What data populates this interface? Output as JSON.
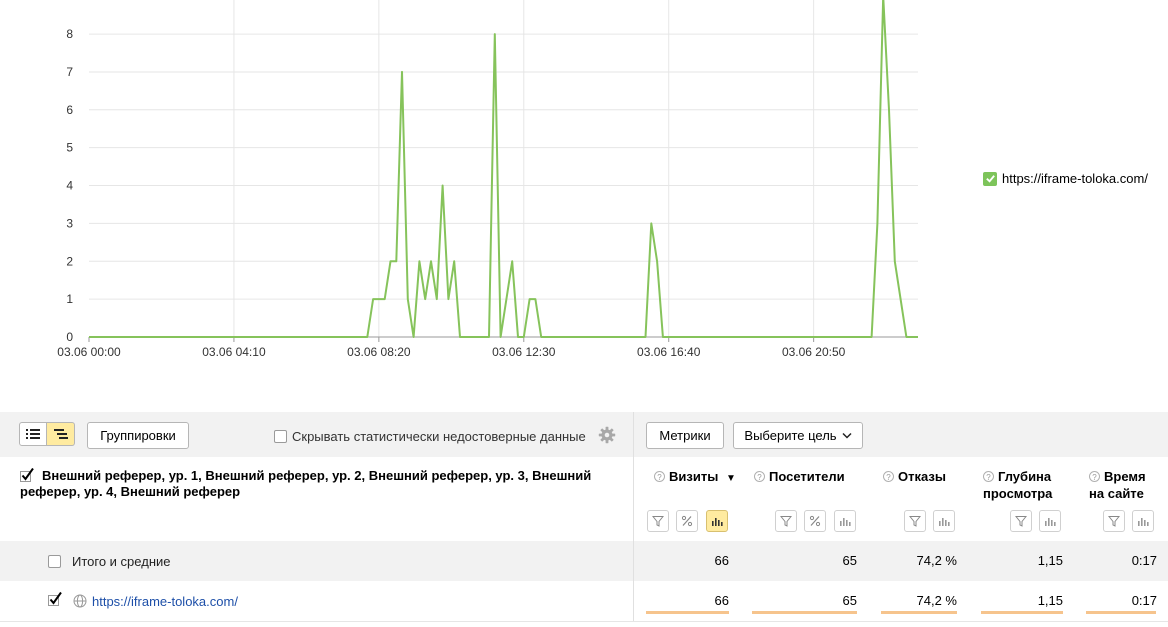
{
  "chart_data": {
    "type": "line",
    "x_tick_labels": [
      "03.06 00:00",
      "03.06 04:10",
      "03.06 08:20",
      "03.06 12:30",
      "03.06 16:40",
      "03.06 20:50"
    ],
    "y_tick_labels": [
      "0",
      "1",
      "2",
      "3",
      "4",
      "5",
      "6",
      "7",
      "8"
    ],
    "ylim": [
      0,
      8.9
    ],
    "xlim_minutes": [
      0,
      1430
    ],
    "grid": true,
    "legend_position": "right",
    "series": [
      {
        "name": "https://iframe-toloka.com/",
        "color": "#86c35b",
        "points": [
          [
            0,
            0
          ],
          [
            480,
            0
          ],
          [
            490,
            1
          ],
          [
            510,
            1
          ],
          [
            520,
            2
          ],
          [
            530,
            2
          ],
          [
            540,
            7
          ],
          [
            550,
            1
          ],
          [
            560,
            0
          ],
          [
            570,
            2
          ],
          [
            580,
            1
          ],
          [
            590,
            2
          ],
          [
            600,
            1
          ],
          [
            610,
            4
          ],
          [
            620,
            1
          ],
          [
            630,
            2
          ],
          [
            640,
            0
          ],
          [
            690,
            0
          ],
          [
            700,
            8
          ],
          [
            710,
            0
          ],
          [
            730,
            2
          ],
          [
            740,
            0
          ],
          [
            750,
            0
          ],
          [
            760,
            1
          ],
          [
            770,
            1
          ],
          [
            780,
            0
          ],
          [
            960,
            0
          ],
          [
            970,
            3
          ],
          [
            980,
            2
          ],
          [
            990,
            0
          ],
          [
            1350,
            0
          ],
          [
            1360,
            3
          ],
          [
            1370,
            9
          ],
          [
            1380,
            6
          ],
          [
            1390,
            2
          ],
          [
            1410,
            0
          ],
          [
            1430,
            0
          ]
        ]
      }
    ]
  },
  "toolbar": {
    "groupings_label": "Группировки",
    "hide_unreliable_label": "Скрывать статистически недостоверные данные",
    "metrics_label": "Метрики",
    "goal_select_label": "Выберите цель"
  },
  "table": {
    "dimensions_header": "Внешний реферер, ур. 1, Внешний реферер, ур. 2, Внешний реферер, ур. 3, Внешний реферер, ур. 4, Внешний реферер",
    "columns": [
      {
        "label": "Визиты",
        "sort_indicator": "▼"
      },
      {
        "label": "Посетители"
      },
      {
        "label": "Отказы"
      },
      {
        "label": "Глубина просмотра"
      },
      {
        "label": "Время на сайте"
      }
    ],
    "total_row": {
      "label": "Итого и средние",
      "values": [
        "66",
        "65",
        "74,2 %",
        "1,15",
        "0:17"
      ]
    },
    "rows": [
      {
        "label": "https://iframe-toloka.com/",
        "values": [
          "66",
          "65",
          "74,2 %",
          "1,15",
          "0:17"
        ],
        "bar_fractions": [
          1.0,
          1.0,
          1.0,
          1.0,
          1.0
        ]
      }
    ]
  }
}
